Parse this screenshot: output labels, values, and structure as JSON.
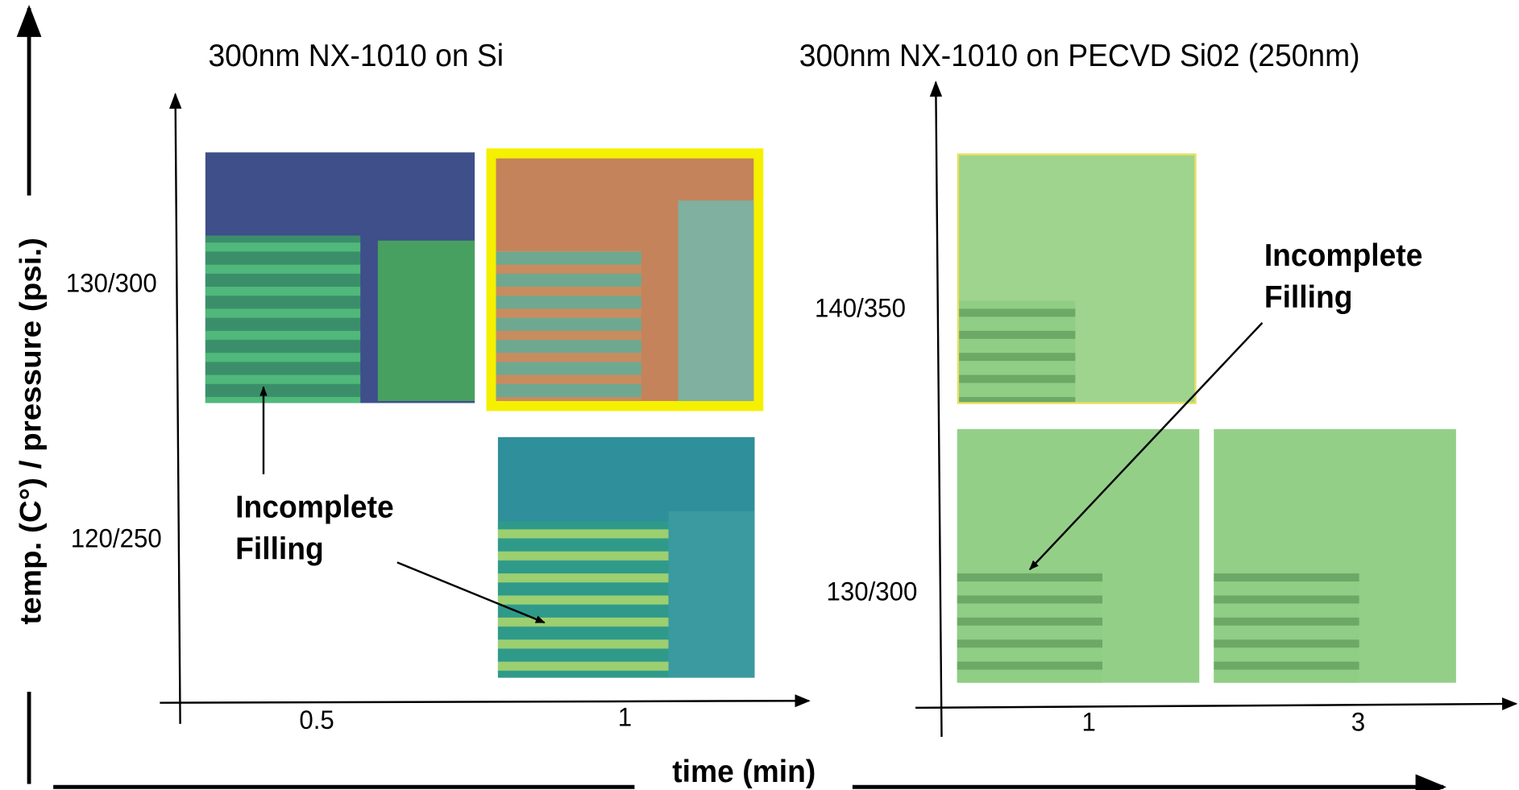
{
  "axis_titles": {
    "y": "temp. (C°) / pressure (psi.)",
    "x": "time (min)"
  },
  "panels": [
    {
      "title": "300nm NX-1010 on Si",
      "y_labels": [
        "130/300",
        "120/250"
      ],
      "x_labels": [
        "0.5",
        "1"
      ],
      "annotation": [
        "Incomplete",
        "Filling"
      ]
    },
    {
      "title": "300nm NX-1010 on PECVD Si02 (250nm)",
      "y_labels": [
        "140/350",
        "130/300"
      ],
      "x_labels": [
        "1",
        "3"
      ],
      "annotation": [
        "Incomplete",
        "Filling"
      ]
    }
  ]
}
